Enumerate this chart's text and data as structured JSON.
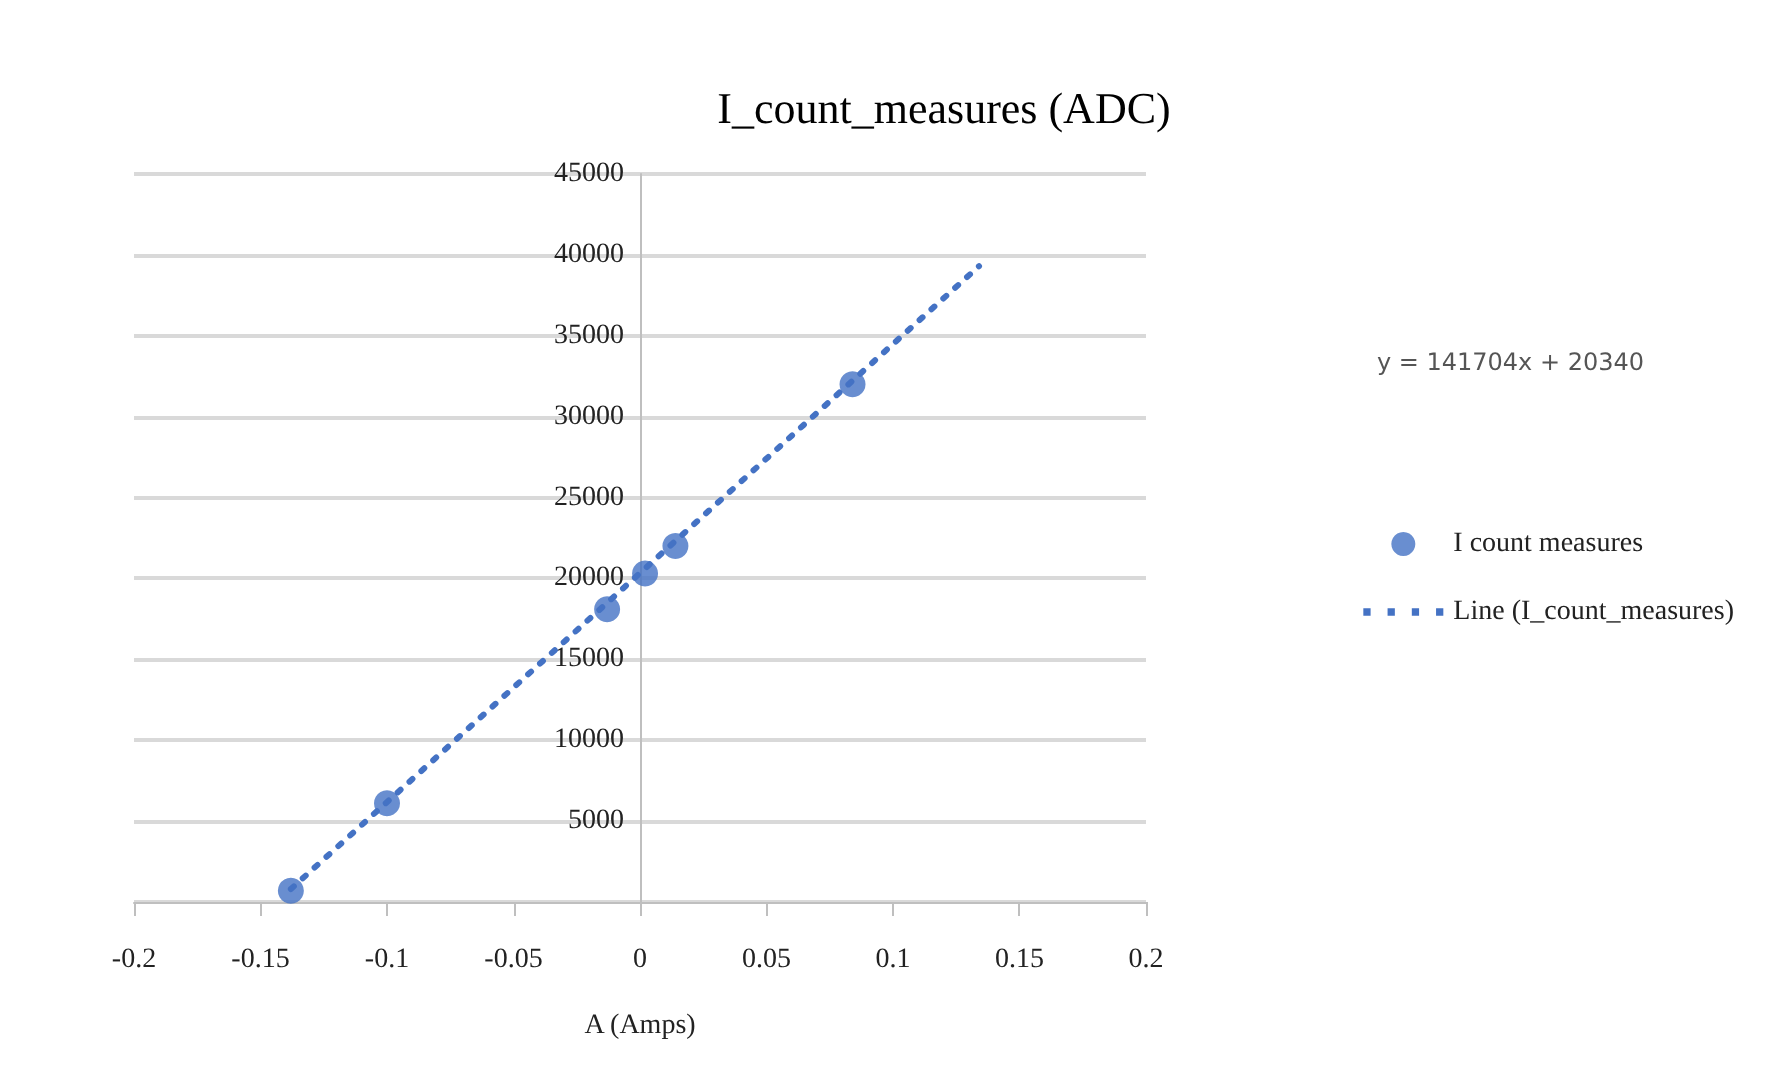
{
  "chart_data": {
    "type": "scatter",
    "title": "I_count_measures (ADC)",
    "xlabel": "A (Amps)",
    "annotations": [
      "y = 141704x + 20340"
    ],
    "series": [
      {
        "name": "I count measures",
        "color": "#4472c4",
        "marker": "circle",
        "x": [
          -0.138,
          -0.1,
          -0.013,
          0.002,
          0.014,
          0.084
        ],
        "values": [
          700,
          6100,
          18100,
          20300,
          22000,
          32000
        ]
      },
      {
        "name": "Line (I_count_measures)",
        "type": "line",
        "color": "#4472c4",
        "line_style": "dotted",
        "marker": "none",
        "x": [
          -0.138,
          0.134
        ],
        "values": [
          800,
          39300
        ]
      }
    ],
    "xlim": [
      -0.2,
      0.2
    ],
    "xticks": [
      -0.2,
      -0.15,
      -0.1,
      -0.05,
      0,
      0.05,
      0.1,
      0.15,
      0.2
    ],
    "ylim": [
      0,
      45000
    ],
    "yticks": [
      {
        "value": 0,
        "label": null
      },
      5000,
      10000,
      15000,
      20000,
      25000,
      30000,
      35000,
      40000,
      45000
    ],
    "grid": "y",
    "legend": "right"
  }
}
